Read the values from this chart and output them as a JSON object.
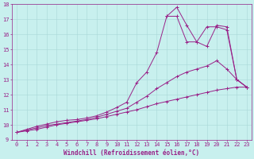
{
  "xlabel": "Windchill (Refroidissement éolien,°C)",
  "background_color": "#c8f0ee",
  "grid_color": "#a8d8d8",
  "line_color": "#992288",
  "xlim": [
    -0.5,
    23.5
  ],
  "ylim": [
    9,
    18
  ],
  "xticks": [
    0,
    1,
    2,
    3,
    4,
    5,
    6,
    7,
    8,
    9,
    10,
    11,
    12,
    13,
    14,
    15,
    16,
    17,
    18,
    19,
    20,
    21,
    22,
    23
  ],
  "yticks": [
    9,
    10,
    11,
    12,
    13,
    14,
    15,
    16,
    17,
    18
  ],
  "line1_x": [
    0,
    1,
    2,
    3,
    4,
    5,
    6,
    7,
    8,
    9,
    10,
    11,
    12,
    13,
    14,
    15,
    16,
    17,
    18,
    19,
    20,
    21,
    22,
    23
  ],
  "line1_y": [
    9.5,
    9.6,
    9.7,
    9.85,
    10.0,
    10.1,
    10.2,
    10.3,
    10.4,
    10.55,
    10.7,
    10.85,
    11.0,
    11.2,
    11.4,
    11.55,
    11.7,
    11.85,
    12.0,
    12.15,
    12.3,
    12.4,
    12.5,
    12.5
  ],
  "line2_x": [
    0,
    1,
    2,
    3,
    4,
    5,
    6,
    7,
    8,
    9,
    10,
    11,
    12,
    13,
    14,
    15,
    16,
    17,
    18,
    19,
    20,
    21,
    22,
    23
  ],
  "line2_y": [
    9.5,
    9.65,
    9.8,
    9.95,
    10.05,
    10.15,
    10.25,
    10.35,
    10.5,
    10.7,
    10.9,
    11.1,
    11.5,
    11.9,
    12.4,
    12.8,
    13.2,
    13.5,
    13.7,
    13.9,
    14.25,
    13.7,
    13.0,
    12.5
  ],
  "line3_x": [
    0,
    1,
    2,
    3,
    4,
    5,
    6,
    7,
    8,
    9,
    10,
    11,
    12,
    13,
    14,
    15,
    16,
    17,
    18,
    19,
    20,
    21,
    22,
    23
  ],
  "line3_y": [
    9.5,
    9.7,
    9.9,
    10.05,
    10.2,
    10.3,
    10.35,
    10.45,
    10.6,
    10.85,
    11.15,
    11.5,
    12.8,
    13.5,
    14.8,
    17.2,
    17.2,
    15.5,
    15.5,
    15.2,
    16.6,
    16.5,
    13.0,
    12.5
  ],
  "line4_x": [
    15,
    16,
    17,
    18,
    19,
    20,
    21,
    22,
    23
  ],
  "line4_y": [
    17.2,
    17.8,
    16.6,
    15.5,
    16.5,
    16.5,
    16.3,
    13.0,
    12.5
  ],
  "figsize": [
    3.2,
    2.0
  ],
  "dpi": 100,
  "font_size": 5.5,
  "tick_font_size": 5,
  "marker": "+"
}
